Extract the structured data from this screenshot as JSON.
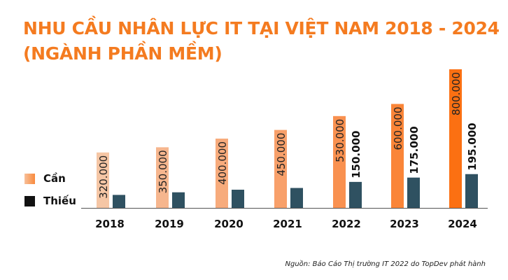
{
  "title_line1": "NHU CẦU NHÂN LỰC IT TẠI VIỆT NAM 2018 - 2024",
  "title_line2": "(NGÀNH PHẦN MỀM)",
  "source": "Nguồn: Báo Cáo Thị trường IT 2022 do TopDev phát hành",
  "chart_data": {
    "type": "bar",
    "title": "NHU CẦU NHÂN LỰC IT TẠI VIỆT NAM 2018 - 2024 (NGÀNH PHẦN MỀM)",
    "categories": [
      "2018",
      "2019",
      "2020",
      "2021",
      "2022",
      "2023",
      "2024"
    ],
    "legend_position": "left",
    "grid": false,
    "series": [
      {
        "name": "Cần",
        "values": [
          320000,
          350000,
          400000,
          450000,
          530000,
          600000,
          800000
        ],
        "labels": [
          "320.000",
          "350.000",
          "400.000",
          "450.000",
          "530.000",
          "600.000",
          "800.000"
        ],
        "colors": [
          "#f5c6a5",
          "#f6b68e",
          "#f7ab7c",
          "#f8a06a",
          "#f99150",
          "#fa8538",
          "#fb7012"
        ]
      },
      {
        "name": "Thiếu",
        "values": [
          75000,
          90000,
          105000,
          115000,
          150000,
          175000,
          195000
        ],
        "labels": [
          "",
          "",
          "",
          "",
          "150.000",
          "175.000",
          "195.000"
        ],
        "color": "#2f5161"
      }
    ],
    "ylim": [
      0,
      800000
    ]
  }
}
